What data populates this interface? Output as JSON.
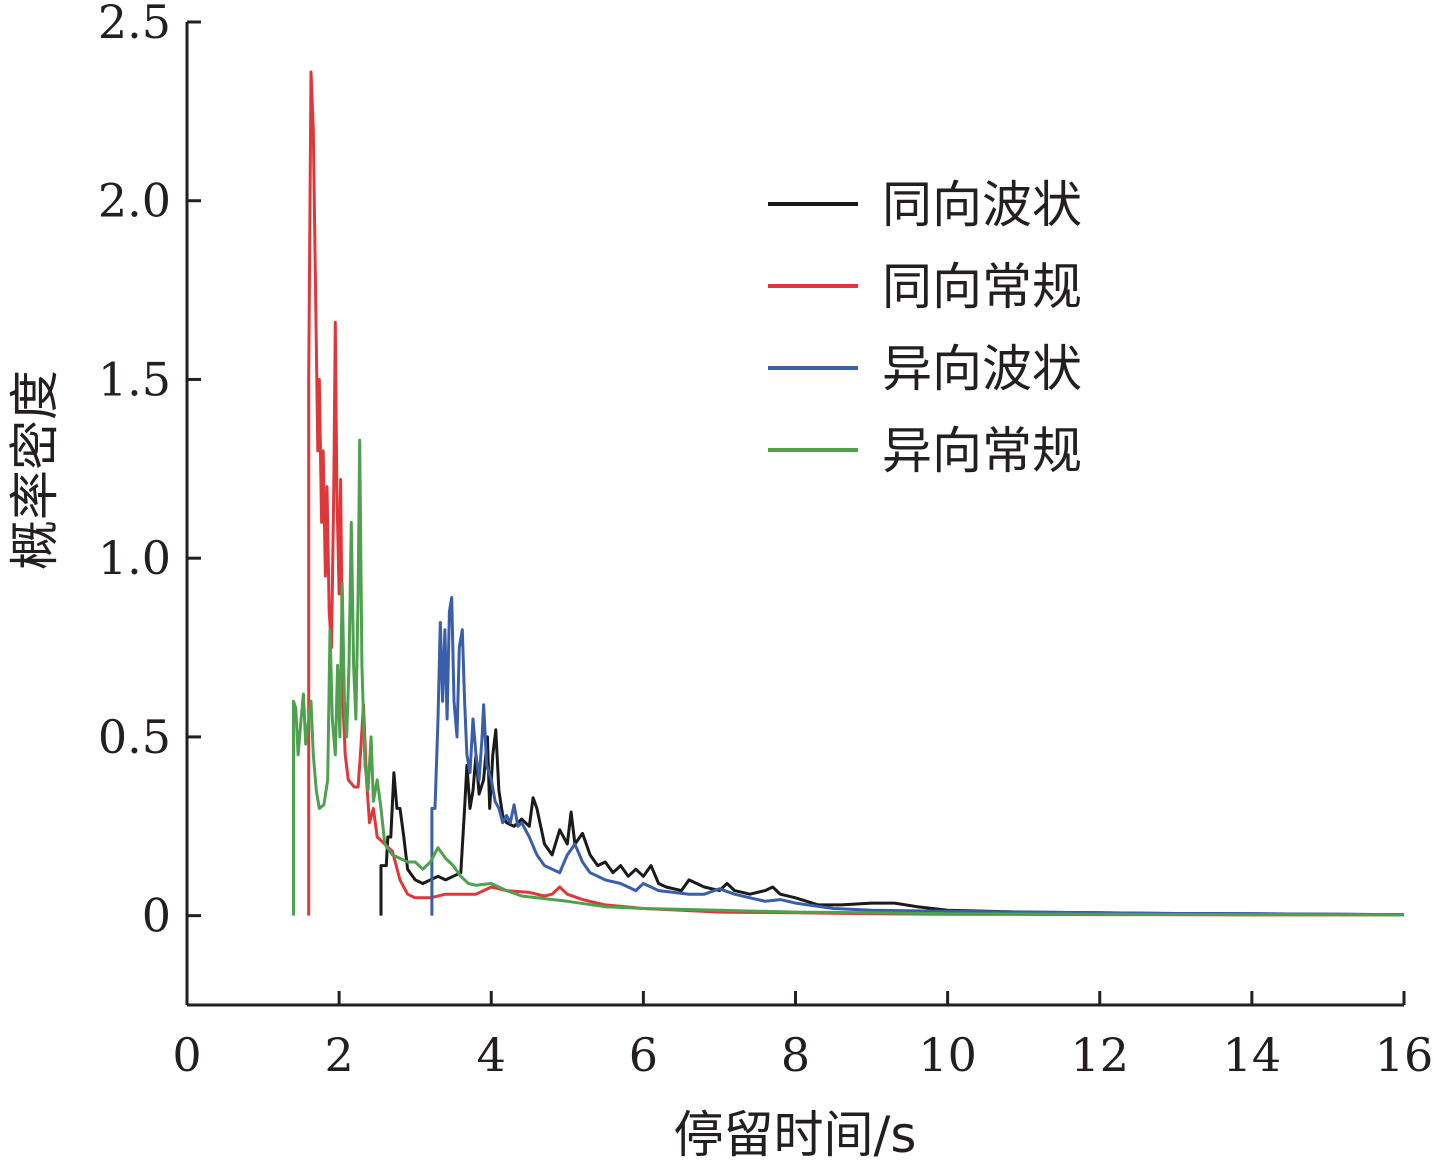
{
  "chart_data": {
    "type": "line",
    "title": "",
    "xlabel": "停留时间/s",
    "ylabel": "概率密度",
    "xlim": [
      0,
      16
    ],
    "ylim": [
      -0.25,
      2.5
    ],
    "x_ticks": [
      0,
      2,
      4,
      6,
      8,
      10,
      12,
      14,
      16
    ],
    "x_tick_labels": [
      "0",
      "2",
      "4",
      "6",
      "8",
      "10",
      "12",
      "14",
      "16"
    ],
    "y_ticks": [
      0,
      0.5,
      1.0,
      1.5,
      2.0,
      2.5
    ],
    "y_tick_labels": [
      "0",
      "0.5",
      "1.0",
      "1.5",
      "2.0",
      "2.5"
    ],
    "grid": false,
    "legend_position": "top-right",
    "series": [
      {
        "name": "同向波状",
        "color": "#1a1a1a",
        "points": [
          [
            2.55,
            0
          ],
          [
            2.55,
            0.14
          ],
          [
            2.62,
            0.14
          ],
          [
            2.64,
            0.22
          ],
          [
            2.68,
            0.22
          ],
          [
            2.72,
            0.4
          ],
          [
            2.76,
            0.3
          ],
          [
            2.8,
            0.3
          ],
          [
            2.85,
            0.22
          ],
          [
            2.9,
            0.13
          ],
          [
            3.0,
            0.1
          ],
          [
            3.1,
            0.09
          ],
          [
            3.2,
            0.1
          ],
          [
            3.3,
            0.11
          ],
          [
            3.4,
            0.1
          ],
          [
            3.5,
            0.11
          ],
          [
            3.6,
            0.12
          ],
          [
            3.65,
            0.3
          ],
          [
            3.68,
            0.42
          ],
          [
            3.72,
            0.3
          ],
          [
            3.76,
            0.35
          ],
          [
            3.8,
            0.45
          ],
          [
            3.84,
            0.34
          ],
          [
            3.9,
            0.38
          ],
          [
            3.95,
            0.5
          ],
          [
            3.98,
            0.3
          ],
          [
            4.02,
            0.45
          ],
          [
            4.06,
            0.52
          ],
          [
            4.1,
            0.35
          ],
          [
            4.15,
            0.28
          ],
          [
            4.2,
            0.26
          ],
          [
            4.3,
            0.25
          ],
          [
            4.4,
            0.27
          ],
          [
            4.5,
            0.25
          ],
          [
            4.55,
            0.33
          ],
          [
            4.6,
            0.3
          ],
          [
            4.7,
            0.2
          ],
          [
            4.8,
            0.17
          ],
          [
            4.9,
            0.24
          ],
          [
            5.0,
            0.2
          ],
          [
            5.05,
            0.29
          ],
          [
            5.1,
            0.2
          ],
          [
            5.2,
            0.23
          ],
          [
            5.3,
            0.17
          ],
          [
            5.4,
            0.14
          ],
          [
            5.5,
            0.15
          ],
          [
            5.6,
            0.12
          ],
          [
            5.7,
            0.14
          ],
          [
            5.8,
            0.11
          ],
          [
            5.9,
            0.13
          ],
          [
            6.0,
            0.11
          ],
          [
            6.1,
            0.14
          ],
          [
            6.2,
            0.09
          ],
          [
            6.3,
            0.08
          ],
          [
            6.5,
            0.07
          ],
          [
            6.6,
            0.1
          ],
          [
            6.8,
            0.08
          ],
          [
            7.0,
            0.07
          ],
          [
            7.1,
            0.09
          ],
          [
            7.2,
            0.07
          ],
          [
            7.4,
            0.06
          ],
          [
            7.6,
            0.07
          ],
          [
            7.7,
            0.08
          ],
          [
            7.8,
            0.06
          ],
          [
            8.0,
            0.05
          ],
          [
            8.3,
            0.03
          ],
          [
            8.6,
            0.03
          ],
          [
            9.0,
            0.035
          ],
          [
            9.3,
            0.035
          ],
          [
            9.6,
            0.025
          ],
          [
            10.0,
            0.015
          ],
          [
            11.0,
            0.01
          ],
          [
            12.0,
            0.008
          ],
          [
            13.0,
            0.006
          ],
          [
            14.0,
            0.005
          ],
          [
            15.0,
            0.004
          ],
          [
            16.0,
            0.003
          ]
        ]
      },
      {
        "name": "同向常规",
        "color": "#e0383a",
        "points": [
          [
            1.6,
            0
          ],
          [
            1.6,
            1.5
          ],
          [
            1.63,
            2.36
          ],
          [
            1.66,
            2.2
          ],
          [
            1.68,
            1.9
          ],
          [
            1.7,
            1.6
          ],
          [
            1.72,
            1.3
          ],
          [
            1.74,
            1.5
          ],
          [
            1.77,
            1.1
          ],
          [
            1.79,
            1.3
          ],
          [
            1.82,
            0.95
          ],
          [
            1.84,
            1.2
          ],
          [
            1.87,
            0.85
          ],
          [
            1.9,
            0.75
          ],
          [
            1.93,
            1.2
          ],
          [
            1.95,
            1.66
          ],
          [
            1.97,
            1.2
          ],
          [
            2.0,
            0.9
          ],
          [
            2.02,
            1.22
          ],
          [
            2.05,
            0.6
          ],
          [
            2.08,
            0.45
          ],
          [
            2.12,
            0.38
          ],
          [
            2.2,
            0.36
          ],
          [
            2.25,
            0.36
          ],
          [
            2.28,
            0.45
          ],
          [
            2.32,
            0.59
          ],
          [
            2.36,
            0.38
          ],
          [
            2.4,
            0.26
          ],
          [
            2.45,
            0.3
          ],
          [
            2.5,
            0.22
          ],
          [
            2.6,
            0.2
          ],
          [
            2.7,
            0.18
          ],
          [
            2.8,
            0.1
          ],
          [
            2.9,
            0.06
          ],
          [
            3.0,
            0.05
          ],
          [
            3.2,
            0.05
          ],
          [
            3.4,
            0.06
          ],
          [
            3.6,
            0.06
          ],
          [
            3.8,
            0.06
          ],
          [
            4.0,
            0.08
          ],
          [
            4.2,
            0.07
          ],
          [
            4.5,
            0.065
          ],
          [
            4.7,
            0.055
          ],
          [
            4.8,
            0.06
          ],
          [
            4.9,
            0.08
          ],
          [
            5.0,
            0.06
          ],
          [
            5.2,
            0.045
          ],
          [
            5.5,
            0.03
          ],
          [
            6.0,
            0.02
          ],
          [
            6.5,
            0.015
          ],
          [
            7.0,
            0.01
          ],
          [
            8.0,
            0.008
          ],
          [
            9.0,
            0.005
          ],
          [
            10.0,
            0.004
          ],
          [
            12.0,
            0.003
          ],
          [
            14.0,
            0.002
          ],
          [
            16.0,
            0.002
          ]
        ]
      },
      {
        "name": "异向波状",
        "color": "#3a5fa8",
        "points": [
          [
            3.22,
            0
          ],
          [
            3.22,
            0.3
          ],
          [
            3.26,
            0.3
          ],
          [
            3.3,
            0.55
          ],
          [
            3.33,
            0.82
          ],
          [
            3.36,
            0.6
          ],
          [
            3.39,
            0.8
          ],
          [
            3.42,
            0.55
          ],
          [
            3.45,
            0.85
          ],
          [
            3.48,
            0.89
          ],
          [
            3.51,
            0.6
          ],
          [
            3.55,
            0.5
          ],
          [
            3.58,
            0.75
          ],
          [
            3.62,
            0.8
          ],
          [
            3.65,
            0.6
          ],
          [
            3.68,
            0.45
          ],
          [
            3.72,
            0.4
          ],
          [
            3.76,
            0.55
          ],
          [
            3.8,
            0.45
          ],
          [
            3.84,
            0.38
          ],
          [
            3.88,
            0.5
          ],
          [
            3.9,
            0.59
          ],
          [
            3.94,
            0.42
          ],
          [
            4.0,
            0.38
          ],
          [
            4.05,
            0.32
          ],
          [
            4.1,
            0.3
          ],
          [
            4.15,
            0.26
          ],
          [
            4.2,
            0.28
          ],
          [
            4.25,
            0.26
          ],
          [
            4.3,
            0.31
          ],
          [
            4.35,
            0.25
          ],
          [
            4.4,
            0.26
          ],
          [
            4.5,
            0.22
          ],
          [
            4.6,
            0.17
          ],
          [
            4.7,
            0.14
          ],
          [
            4.8,
            0.13
          ],
          [
            4.9,
            0.12
          ],
          [
            5.0,
            0.17
          ],
          [
            5.1,
            0.2
          ],
          [
            5.2,
            0.15
          ],
          [
            5.3,
            0.12
          ],
          [
            5.5,
            0.1
          ],
          [
            5.7,
            0.09
          ],
          [
            5.9,
            0.07
          ],
          [
            6.0,
            0.09
          ],
          [
            6.2,
            0.07
          ],
          [
            6.4,
            0.065
          ],
          [
            6.6,
            0.06
          ],
          [
            6.8,
            0.06
          ],
          [
            7.0,
            0.075
          ],
          [
            7.2,
            0.06
          ],
          [
            7.4,
            0.05
          ],
          [
            7.6,
            0.04
          ],
          [
            7.8,
            0.045
          ],
          [
            8.0,
            0.035
          ],
          [
            8.5,
            0.02
          ],
          [
            9.0,
            0.015
          ],
          [
            10.0,
            0.012
          ],
          [
            11.0,
            0.01
          ],
          [
            12.0,
            0.008
          ],
          [
            13.0,
            0.006
          ],
          [
            14.0,
            0.005
          ],
          [
            16.0,
            0.003
          ]
        ]
      },
      {
        "name": "异向常规",
        "color": "#4fa04f",
        "points": [
          [
            1.4,
            0
          ],
          [
            1.4,
            0.6
          ],
          [
            1.43,
            0.58
          ],
          [
            1.46,
            0.45
          ],
          [
            1.5,
            0.55
          ],
          [
            1.53,
            0.62
          ],
          [
            1.56,
            0.48
          ],
          [
            1.6,
            0.55
          ],
          [
            1.63,
            0.6
          ],
          [
            1.66,
            0.45
          ],
          [
            1.7,
            0.35
          ],
          [
            1.74,
            0.3
          ],
          [
            1.8,
            0.31
          ],
          [
            1.85,
            0.38
          ],
          [
            1.88,
            0.8
          ],
          [
            1.91,
            0.55
          ],
          [
            1.95,
            0.45
          ],
          [
            1.98,
            0.7
          ],
          [
            2.01,
            0.5
          ],
          [
            2.04,
            0.93
          ],
          [
            2.07,
            0.6
          ],
          [
            2.1,
            0.5
          ],
          [
            2.13,
            0.7
          ],
          [
            2.16,
            1.1
          ],
          [
            2.19,
            0.7
          ],
          [
            2.22,
            0.55
          ],
          [
            2.25,
            0.9
          ],
          [
            2.27,
            1.33
          ],
          [
            2.3,
            0.7
          ],
          [
            2.34,
            0.42
          ],
          [
            2.38,
            0.35
          ],
          [
            2.42,
            0.5
          ],
          [
            2.45,
            0.32
          ],
          [
            2.5,
            0.38
          ],
          [
            2.55,
            0.3
          ],
          [
            2.6,
            0.2
          ],
          [
            2.7,
            0.17
          ],
          [
            2.8,
            0.16
          ],
          [
            2.9,
            0.15
          ],
          [
            3.0,
            0.15
          ],
          [
            3.1,
            0.13
          ],
          [
            3.2,
            0.15
          ],
          [
            3.3,
            0.19
          ],
          [
            3.4,
            0.16
          ],
          [
            3.5,
            0.14
          ],
          [
            3.6,
            0.11
          ],
          [
            3.7,
            0.09
          ],
          [
            3.8,
            0.085
          ],
          [
            4.0,
            0.09
          ],
          [
            4.2,
            0.07
          ],
          [
            4.4,
            0.055
          ],
          [
            4.6,
            0.05
          ],
          [
            5.0,
            0.04
          ],
          [
            5.5,
            0.025
          ],
          [
            6.0,
            0.02
          ],
          [
            7.0,
            0.015
          ],
          [
            8.0,
            0.01
          ],
          [
            9.0,
            0.008
          ],
          [
            10.0,
            0.005
          ],
          [
            12.0,
            0.004
          ],
          [
            14.0,
            0.003
          ],
          [
            16.0,
            0.002
          ]
        ]
      }
    ]
  }
}
